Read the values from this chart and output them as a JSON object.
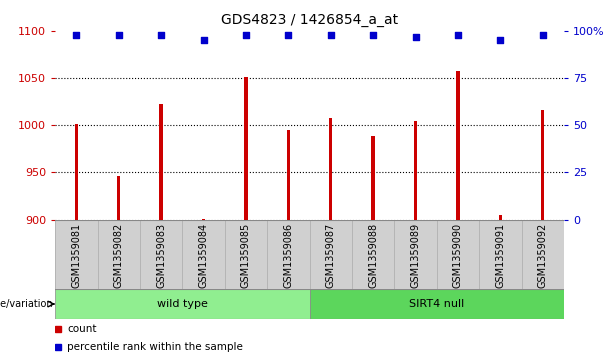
{
  "title": "GDS4823 / 1426854_a_at",
  "categories": [
    "GSM1359081",
    "GSM1359082",
    "GSM1359083",
    "GSM1359084",
    "GSM1359085",
    "GSM1359086",
    "GSM1359087",
    "GSM1359088",
    "GSM1359089",
    "GSM1359090",
    "GSM1359091",
    "GSM1359092"
  ],
  "counts": [
    1001,
    946,
    1023,
    901,
    1051,
    995,
    1008,
    989,
    1005,
    1057,
    905,
    1016
  ],
  "percentile_ranks": [
    98,
    98,
    98,
    95,
    98,
    98,
    98,
    98,
    97,
    98,
    95,
    98
  ],
  "ylim_left": [
    900,
    1100
  ],
  "ylim_right": [
    0,
    100
  ],
  "yticks_left": [
    900,
    950,
    1000,
    1050,
    1100
  ],
  "yticks_right": [
    0,
    25,
    50,
    75,
    100
  ],
  "yticklabels_right": [
    "0",
    "25",
    "50",
    "75",
    "100%"
  ],
  "bar_color": "#cc0000",
  "dot_color": "#0000cc",
  "bar_width": 0.08,
  "wild_type_indices": [
    0,
    1,
    2,
    3,
    4,
    5
  ],
  "sirt4_null_indices": [
    6,
    7,
    8,
    9,
    10,
    11
  ],
  "group_labels": [
    "wild type",
    "SIRT4 null"
  ],
  "group_colors": [
    "#90ee90",
    "#5cd65c"
  ],
  "sample_bg_color": "#d0d0d0",
  "plot_bg_color": "#ffffff",
  "grid_color": "#000000",
  "grid_style": ":",
  "grid_linewidth": 0.8,
  "legend_count_label": "count",
  "legend_pct_label": "percentile rank within the sample",
  "genotype_label": "genotype/variation",
  "title_fontsize": 10,
  "tick_fontsize": 8,
  "label_fontsize": 7,
  "group_fontsize": 8
}
